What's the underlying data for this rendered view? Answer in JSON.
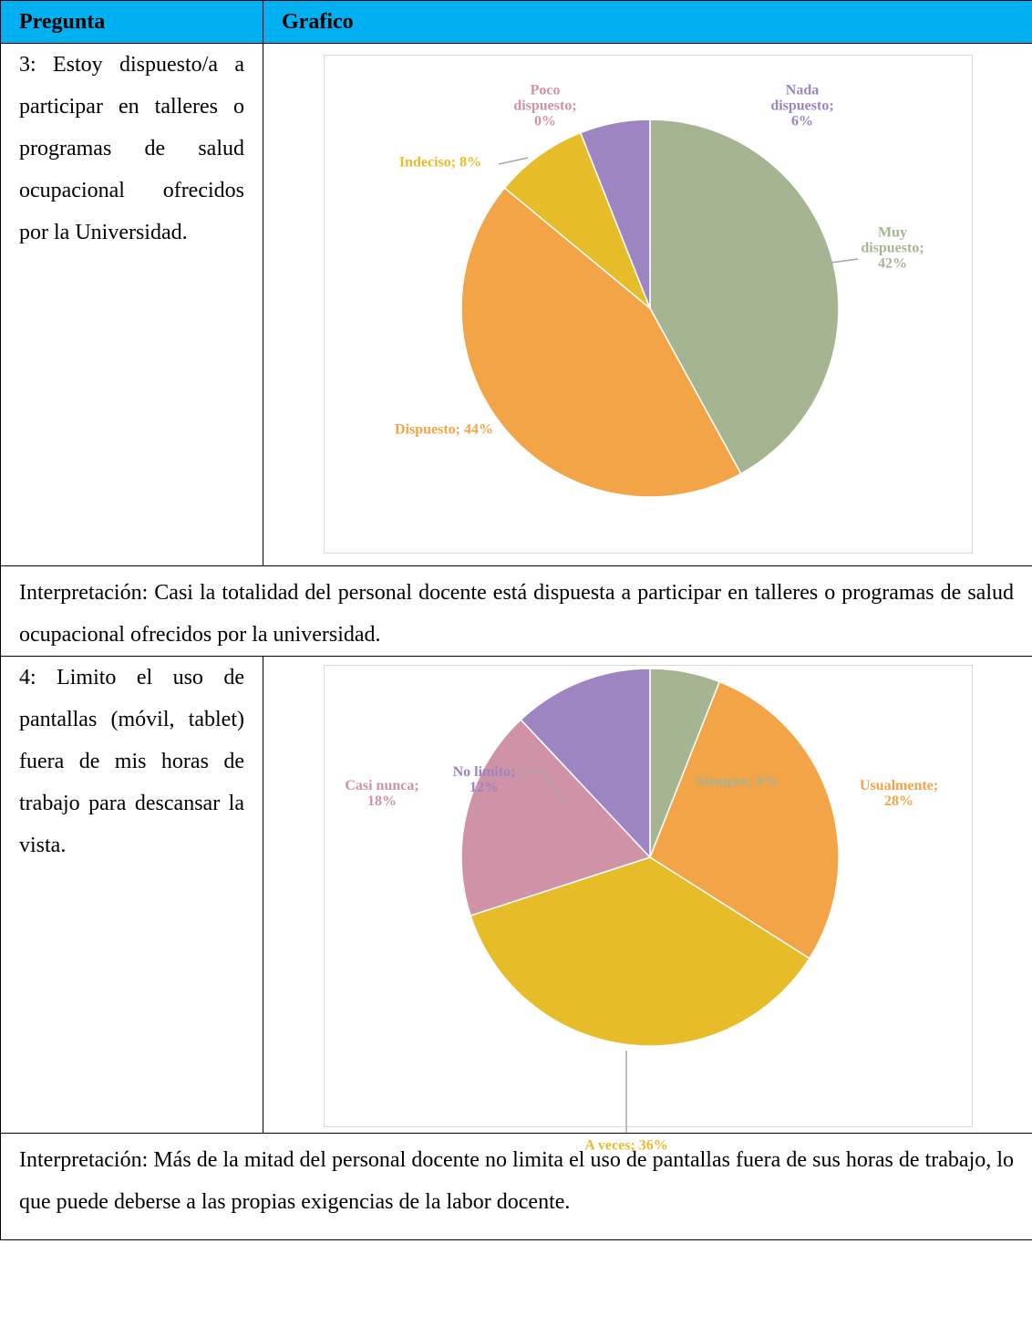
{
  "table": {
    "header": [
      "Pregunta",
      "Grafico"
    ],
    "rows": [
      {
        "question": "3: Estoy dispuesto/a a participar en talleres o programas de salud ocupacional ofrecidos por la Universidad.",
        "chart": {
          "type": "pie",
          "values": [
            42,
            44,
            8,
            0,
            6
          ],
          "value_labels": [
            "Muy dispuesto; 42%",
            "Dispuesto; 44%",
            "Indeciso; 8%",
            "Poco dispuesto; 0%",
            "Nada dispuesto; 6%"
          ],
          "colors": [
            "#a5b592",
            "#f3a447",
            "#e7bc29",
            "#d092a7",
            "#9c85c0"
          ]
        },
        "interpretation": "Interpretación: Casi la totalidad del personal docente está dispuesta a participar en talleres o programas de salud ocupacional ofrecidos por la universidad."
      },
      {
        "question": "4: Limito el uso de pantallas (móvil, tablet) fuera de mis horas de trabajo para descansar la vista.",
        "chart": {
          "type": "pie",
          "values": [
            6,
            28,
            36,
            18,
            12
          ],
          "value_labels": [
            "Siempre; 6%",
            "Usualmente; 28%",
            "A veces; 36%",
            "Casi nunca; 18%",
            "No limito; 12%"
          ],
          "colors": [
            "#a5b592",
            "#f3a447",
            "#e7bc29",
            "#d092a7",
            "#9c85c0"
          ]
        },
        "interpretation": "Interpretación: Más de la mitad del personal docente no limita el uso de pantallas fuera de sus horas de trabajo, lo que puede deberse a las propias exigencias de la labor docente."
      }
    ]
  }
}
